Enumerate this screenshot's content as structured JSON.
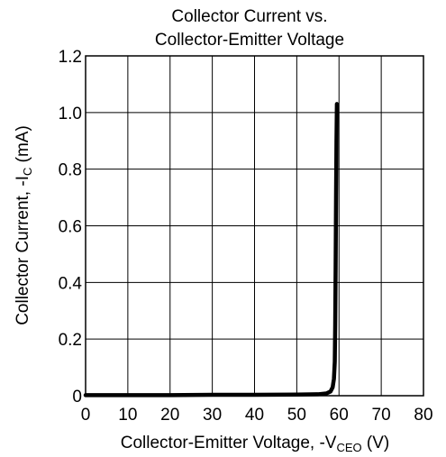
{
  "chart_data": {
    "type": "line",
    "title_lines": [
      "Collector Current vs.",
      "Collector-Emitter Voltage"
    ],
    "xlabel": {
      "prefix": "Collector-Emitter Voltage, -V",
      "subscript": "CEO",
      "suffix": " (V)"
    },
    "ylabel": {
      "prefix": "Collector Current, -I",
      "subscript": "C",
      "suffix": " (mA)"
    },
    "xlim": [
      0,
      80
    ],
    "ylim": [
      0,
      1.2
    ],
    "x_ticks": [
      0,
      10,
      20,
      30,
      40,
      50,
      60,
      70,
      80
    ],
    "x_tick_labels": [
      "0",
      "10",
      "20",
      "30",
      "40",
      "50",
      "60",
      "70",
      "80"
    ],
    "y_ticks": [
      0,
      0.2,
      0.4,
      0.6,
      0.8,
      1.0,
      1.2
    ],
    "y_tick_labels": [
      "0",
      "0.2",
      "0.4",
      "0.6",
      "0.8",
      "1.0",
      "1.2"
    ],
    "grid": true,
    "colors": {
      "line": "#000000",
      "grid": "#000000",
      "background": "#ffffff"
    },
    "series": [
      {
        "x": [
          0,
          10,
          20,
          30,
          40,
          50,
          55,
          57,
          58,
          58.5,
          58.8,
          59.0,
          59.1,
          59.2,
          59.3,
          59.4,
          59.5
        ],
        "y": [
          0.002,
          0.002,
          0.002,
          0.003,
          0.003,
          0.004,
          0.005,
          0.008,
          0.015,
          0.03,
          0.06,
          0.12,
          0.25,
          0.45,
          0.7,
          0.9,
          1.03
        ]
      }
    ]
  }
}
